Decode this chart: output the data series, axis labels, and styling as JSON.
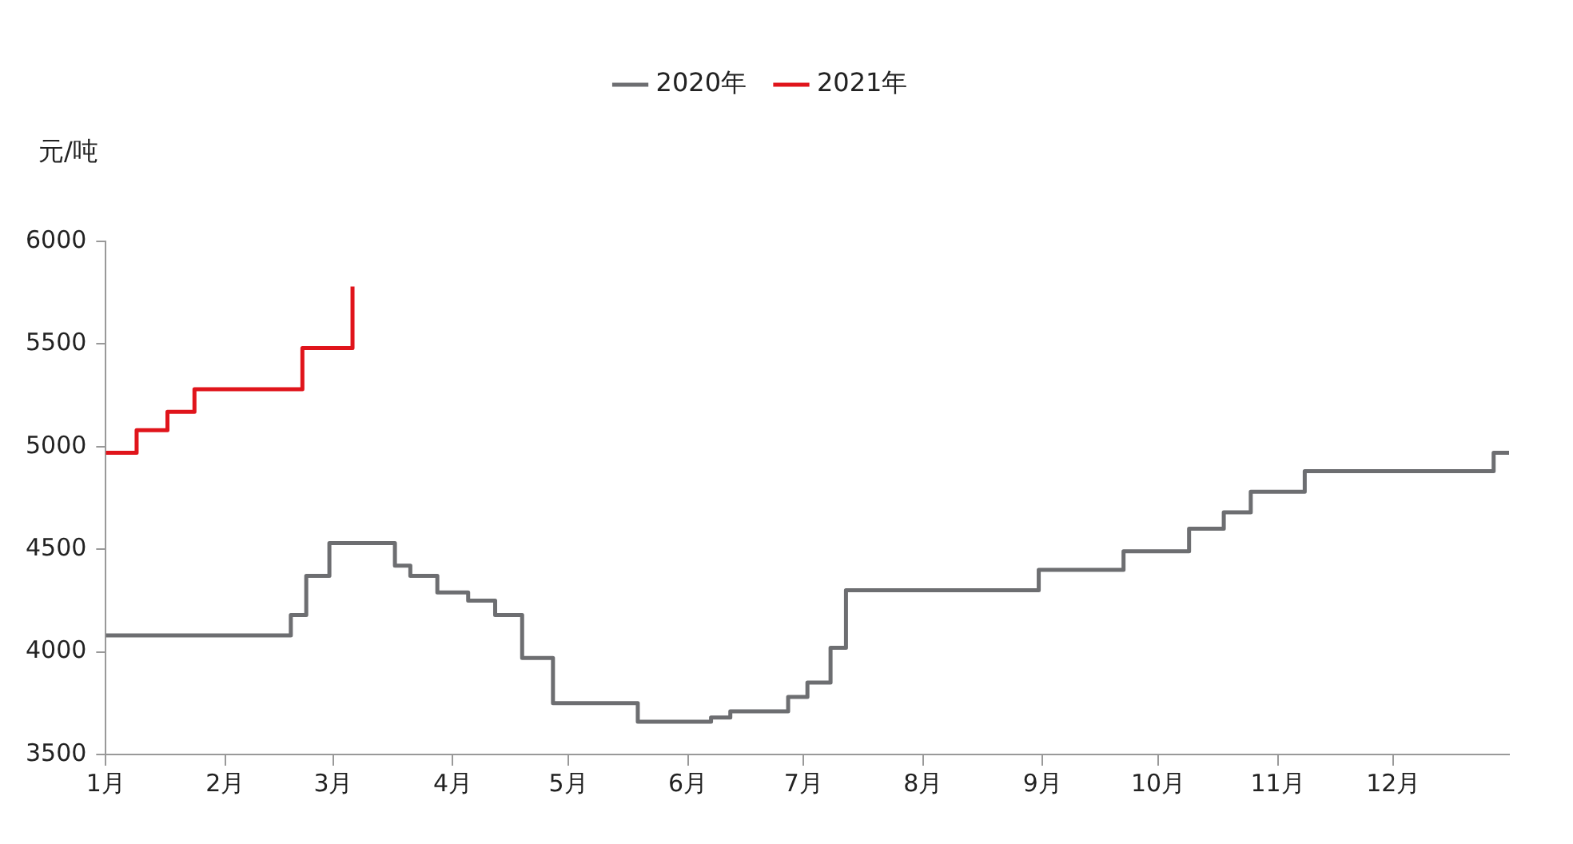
{
  "chart_data": {
    "type": "step",
    "ylabel": "元/吨",
    "xlim": [
      "--01-01",
      "--12-31"
    ],
    "xticks": [
      {
        "value": "--01-01",
        "label": "1月"
      },
      {
        "value": "--02-01",
        "label": "2月"
      },
      {
        "value": "--03-01",
        "label": "3月"
      },
      {
        "value": "--04-01",
        "label": "4月"
      },
      {
        "value": "--05-01",
        "label": "5月"
      },
      {
        "value": "--06-01",
        "label": "6月"
      },
      {
        "value": "--07-01",
        "label": "7月"
      },
      {
        "value": "--08-01",
        "label": "8月"
      },
      {
        "value": "--09-01",
        "label": "9月"
      },
      {
        "value": "--10-01",
        "label": "10月"
      },
      {
        "value": "--11-01",
        "label": "11月"
      },
      {
        "value": "--12-01",
        "label": "12月"
      }
    ],
    "ylim": [
      3500,
      6000
    ],
    "yticks": [
      3500,
      4000,
      4500,
      5000,
      5500,
      6000
    ],
    "grid": false,
    "legend": "top",
    "marker": "none",
    "line_style": "solid",
    "series": [
      {
        "name": "2020年",
        "color": "#6d6e71",
        "x": [
          "--01-01",
          "--02-18",
          "--02-22",
          "--02-28",
          "--03-17",
          "--03-21",
          "--03-28",
          "--04-05",
          "--04-12",
          "--04-19",
          "--04-27",
          "--05-19",
          "--06-07",
          "--06-12",
          "--06-27",
          "--07-02",
          "--07-08",
          "--07-12",
          "--08-31",
          "--09-22",
          "--10-09",
          "--10-18",
          "--10-25",
          "--11-08",
          "--12-27",
          "--12-31"
        ],
        "values": [
          4080,
          4180,
          4370,
          4530,
          4420,
          4370,
          4290,
          4250,
          4180,
          3970,
          3750,
          3660,
          3680,
          3710,
          3780,
          3850,
          4020,
          4300,
          4400,
          4490,
          4600,
          4680,
          4780,
          4880,
          4970,
          4970
        ]
      },
      {
        "name": "2021年",
        "color": "#e0141b",
        "x": [
          "--01-01",
          "--01-09",
          "--01-17",
          "--01-24",
          "--02-21",
          "--03-06"
        ],
        "values": [
          4970,
          5080,
          5170,
          5280,
          5480,
          5780
        ]
      }
    ]
  }
}
